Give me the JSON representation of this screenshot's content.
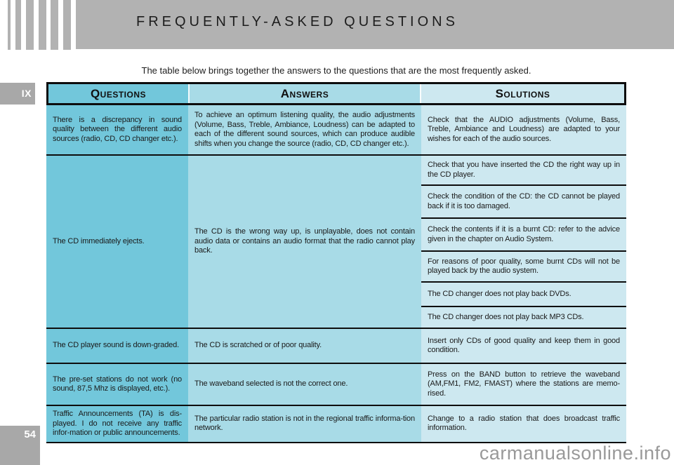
{
  "page": {
    "title": "FREQUENTLY-ASKED QUESTIONS",
    "intro": "The table below brings together the answers to the questions that are the most frequently asked.",
    "section_tab": "IX",
    "page_number": "54",
    "watermark": "carmanualsonline.info"
  },
  "colors": {
    "banner_gray": "#b2b2b2",
    "tab_gray": "#a8a8a8",
    "questions_column": "#72c7db",
    "answers_column": "#a8dbe7",
    "solutions_column": "#cde8f0",
    "table_border": "#0d0d0d",
    "watermark_gray": "#999999"
  },
  "table": {
    "headers": [
      "Questions",
      "Answers",
      "Solutions"
    ],
    "rows": [
      {
        "question": "There is a discrepancy in sound quality between the different audio sources (radio, CD, CD changer etc.).",
        "answer": "To achieve an optimum listening quality, the audio adjustments (Volume, Bass, Treble, Ambiance, Loudness) can be adapted to each of the different sound sources, which can produce audible shifts when you change the source (radio, CD, CD changer etc.).",
        "solutions": [
          "Check that the AUDIO adjustments (Volume, Bass, Treble, Ambiance and Loudness) are adapted to your wishes for each of the audio sources."
        ]
      },
      {
        "question": "The CD immediately ejects.",
        "answer": "The CD is the wrong way up, is unplayable, does not contain audio data or contains an audio format that the radio cannot play back.",
        "solutions": [
          "Check that you have inserted the CD the right way up in the CD player.",
          "Check the condition of the CD: the CD cannot be played back if it is too damaged.",
          "Check the contents if it is a burnt CD: refer to the advice given in the chapter on Audio System.",
          "For reasons of poor quality, some burnt CDs will not be played back by the audio system.",
          "The CD changer does not play back DVDs.",
          "The CD changer does not play back MP3 CDs."
        ]
      },
      {
        "question": "The CD player sound is down-graded.",
        "answer": "The CD is scratched or of poor quality.",
        "solutions": [
          "Insert only CDs of good quality and keep them in good condition."
        ]
      },
      {
        "question": "The pre-set stations do not work (no sound, 87,5 Mhz is displayed, etc.).",
        "answer": "The waveband selected is not the correct one.",
        "solutions": [
          "Press on the BAND button to retrieve the waveband (AM,FM1, FM2, FMAST) where the stations are memo-rised."
        ]
      },
      {
        "question": "Traffic Announcements (TA) is dis-played. I do not receive any traffic infor-mation or public announcements.",
        "answer": "The particular radio station is not in the regional traffic informa-tion network.",
        "solutions": [
          "Change to a radio station that does broadcast traffic information."
        ]
      }
    ]
  }
}
